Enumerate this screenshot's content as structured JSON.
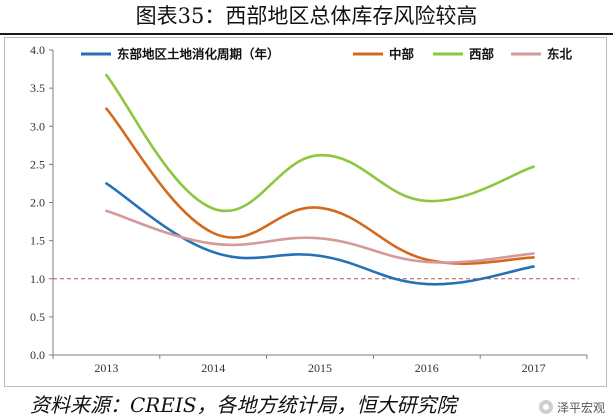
{
  "header": {
    "title": "图表35：西部地区总体库存风险较高"
  },
  "source": {
    "text": "资料来源：CREIS，各地方统计局，恒大研究院"
  },
  "watermark": {
    "text": "泽平宏观"
  },
  "colors": {
    "east": "#2471b5",
    "central": "#d4691c",
    "west": "#8dc63f",
    "northeast": "#d49a9a",
    "reference_line": "#c0504d"
  },
  "chart_data": {
    "type": "line",
    "categories": [
      "2013",
      "2014",
      "2015",
      "2016",
      "2017"
    ],
    "ylim": [
      0,
      4.0
    ],
    "yticks": [
      "0.0",
      "0.5",
      "1.0",
      "1.5",
      "2.0",
      "2.5",
      "3.0",
      "3.5",
      "4.0"
    ],
    "grid": false,
    "legend_position": "top",
    "reference_line": {
      "y": 1.0,
      "style": "dashed"
    },
    "smooth": true,
    "series": [
      {
        "name": "东部地区土地消化周期（年）",
        "color": "#2471b5",
        "values": [
          2.25,
          1.35,
          1.3,
          0.93,
          1.16
        ]
      },
      {
        "name": "中部",
        "color": "#d4691c",
        "values": [
          3.23,
          1.6,
          1.93,
          1.25,
          1.28
        ]
      },
      {
        "name": "西部",
        "color": "#8dc63f",
        "values": [
          3.67,
          1.92,
          2.62,
          2.02,
          2.47
        ]
      },
      {
        "name": "东北",
        "color": "#d49a9a",
        "values": [
          1.89,
          1.46,
          1.53,
          1.22,
          1.33
        ]
      }
    ]
  }
}
